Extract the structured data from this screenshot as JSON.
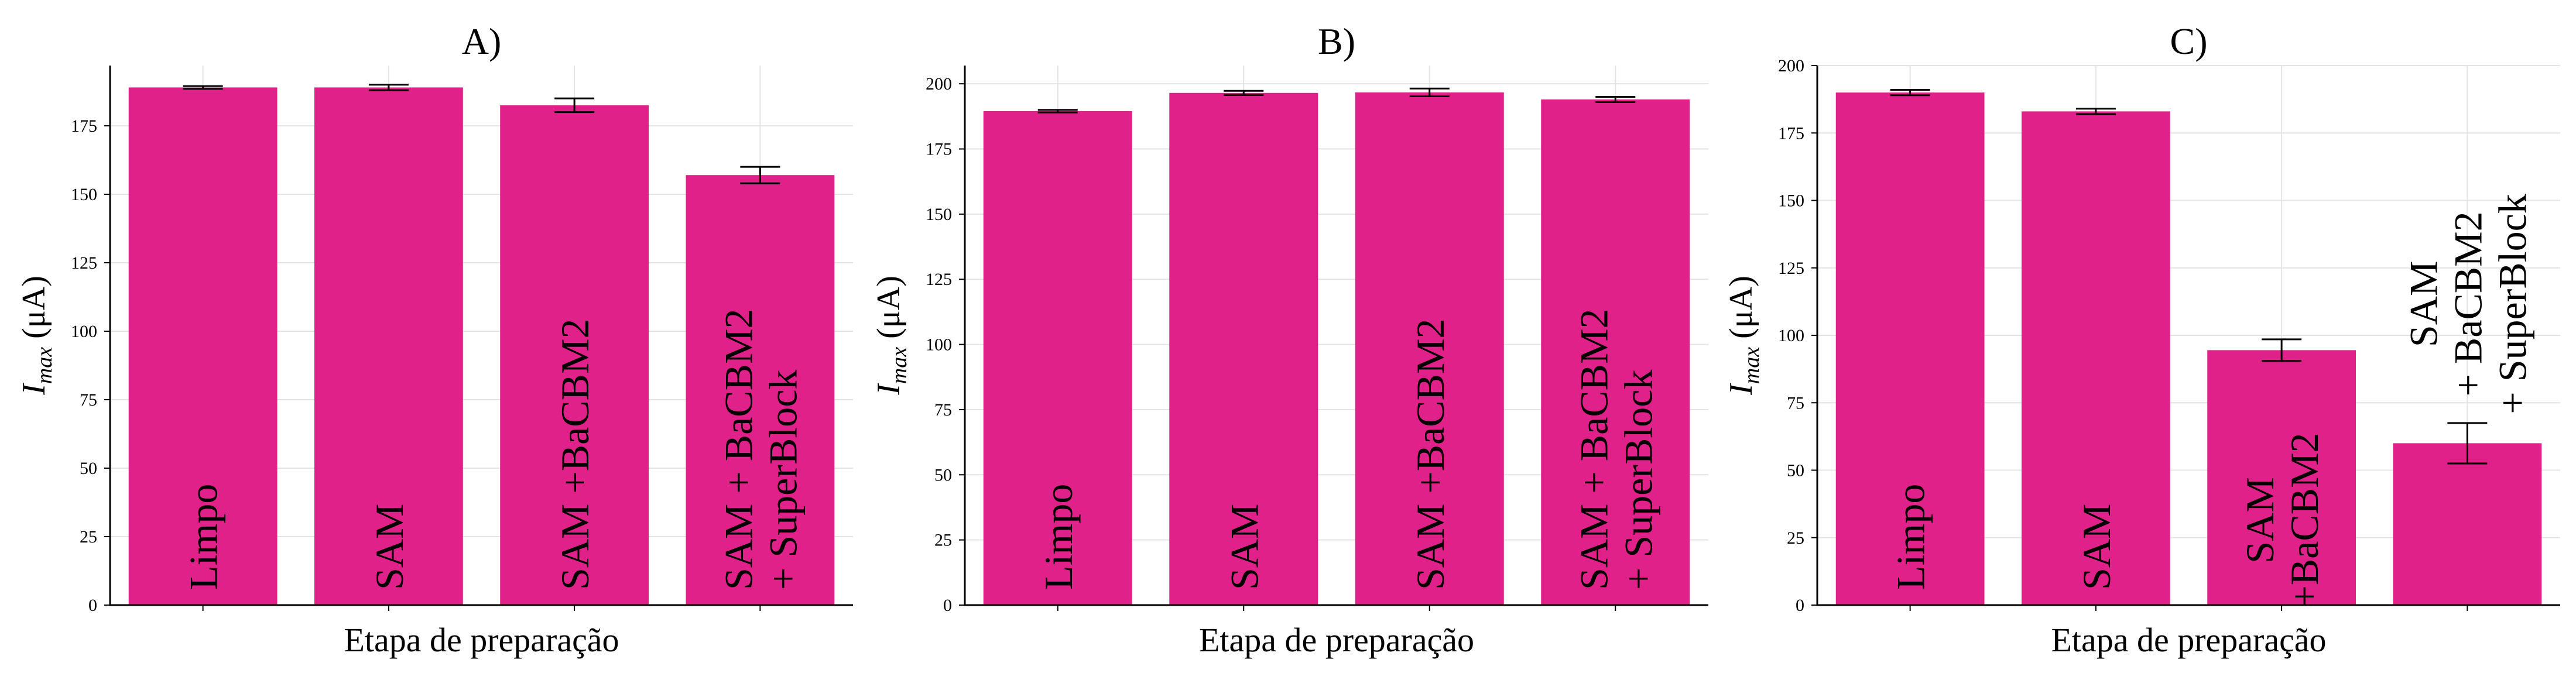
{
  "colors": {
    "bar": "#e0218a",
    "axis": "#000000",
    "grid": "#e4e4e4"
  },
  "chart_data": [
    {
      "type": "bar",
      "title": "A)",
      "xlabel": "Etapa de preparação",
      "ylabel_main": "I",
      "ylabel_sub": "max",
      "ylabel_unit": " (μA)",
      "ylim": [
        0,
        197
      ],
      "yticks": [
        0,
        25,
        50,
        75,
        100,
        125,
        150,
        175
      ],
      "grid": true,
      "categories": [
        [
          "Limpo"
        ],
        [
          "SAM"
        ],
        [
          "SAM +BaCBM2"
        ],
        [
          "SAM + BaCBM2",
          "+ SuperBlock"
        ]
      ],
      "label_position": "inside",
      "values": [
        189,
        189,
        182.5,
        157
      ],
      "errors": [
        0.5,
        1,
        2.5,
        3
      ]
    },
    {
      "type": "bar",
      "title": "B)",
      "xlabel": "Etapa de preparação",
      "ylabel_main": "I",
      "ylabel_sub": "max",
      "ylabel_unit": " (μA)",
      "ylim": [
        0,
        207
      ],
      "yticks": [
        0,
        25,
        50,
        75,
        100,
        125,
        150,
        175,
        200
      ],
      "grid": true,
      "categories": [
        [
          "Limpo"
        ],
        [
          "SAM"
        ],
        [
          "SAM +BaCBM2"
        ],
        [
          "SAM + BaCBM2",
          "+ SuperBlock"
        ]
      ],
      "label_position": "inside",
      "values": [
        189.5,
        196.5,
        196.7,
        194
      ],
      "errors": [
        0.5,
        0.8,
        1.5,
        1
      ]
    },
    {
      "type": "bar",
      "title": "C)",
      "xlabel": "Etapa de preparação",
      "ylabel_main": "I",
      "ylabel_sub": "max",
      "ylabel_unit": " (μA)",
      "ylim": [
        0,
        200
      ],
      "yticks": [
        0,
        25,
        50,
        75,
        100,
        125,
        150,
        175,
        200
      ],
      "grid": true,
      "categories": [
        [
          "Limpo"
        ],
        [
          "SAM"
        ],
        [
          "SAM",
          "+BaCBM2"
        ],
        [
          "SAM",
          "+ BaCBM2",
          "+ SuperBlock"
        ]
      ],
      "label_position": "inside-or-above",
      "values": [
        190,
        183,
        94.5,
        60
      ],
      "errors": [
        1,
        1,
        4,
        7.5
      ]
    }
  ]
}
